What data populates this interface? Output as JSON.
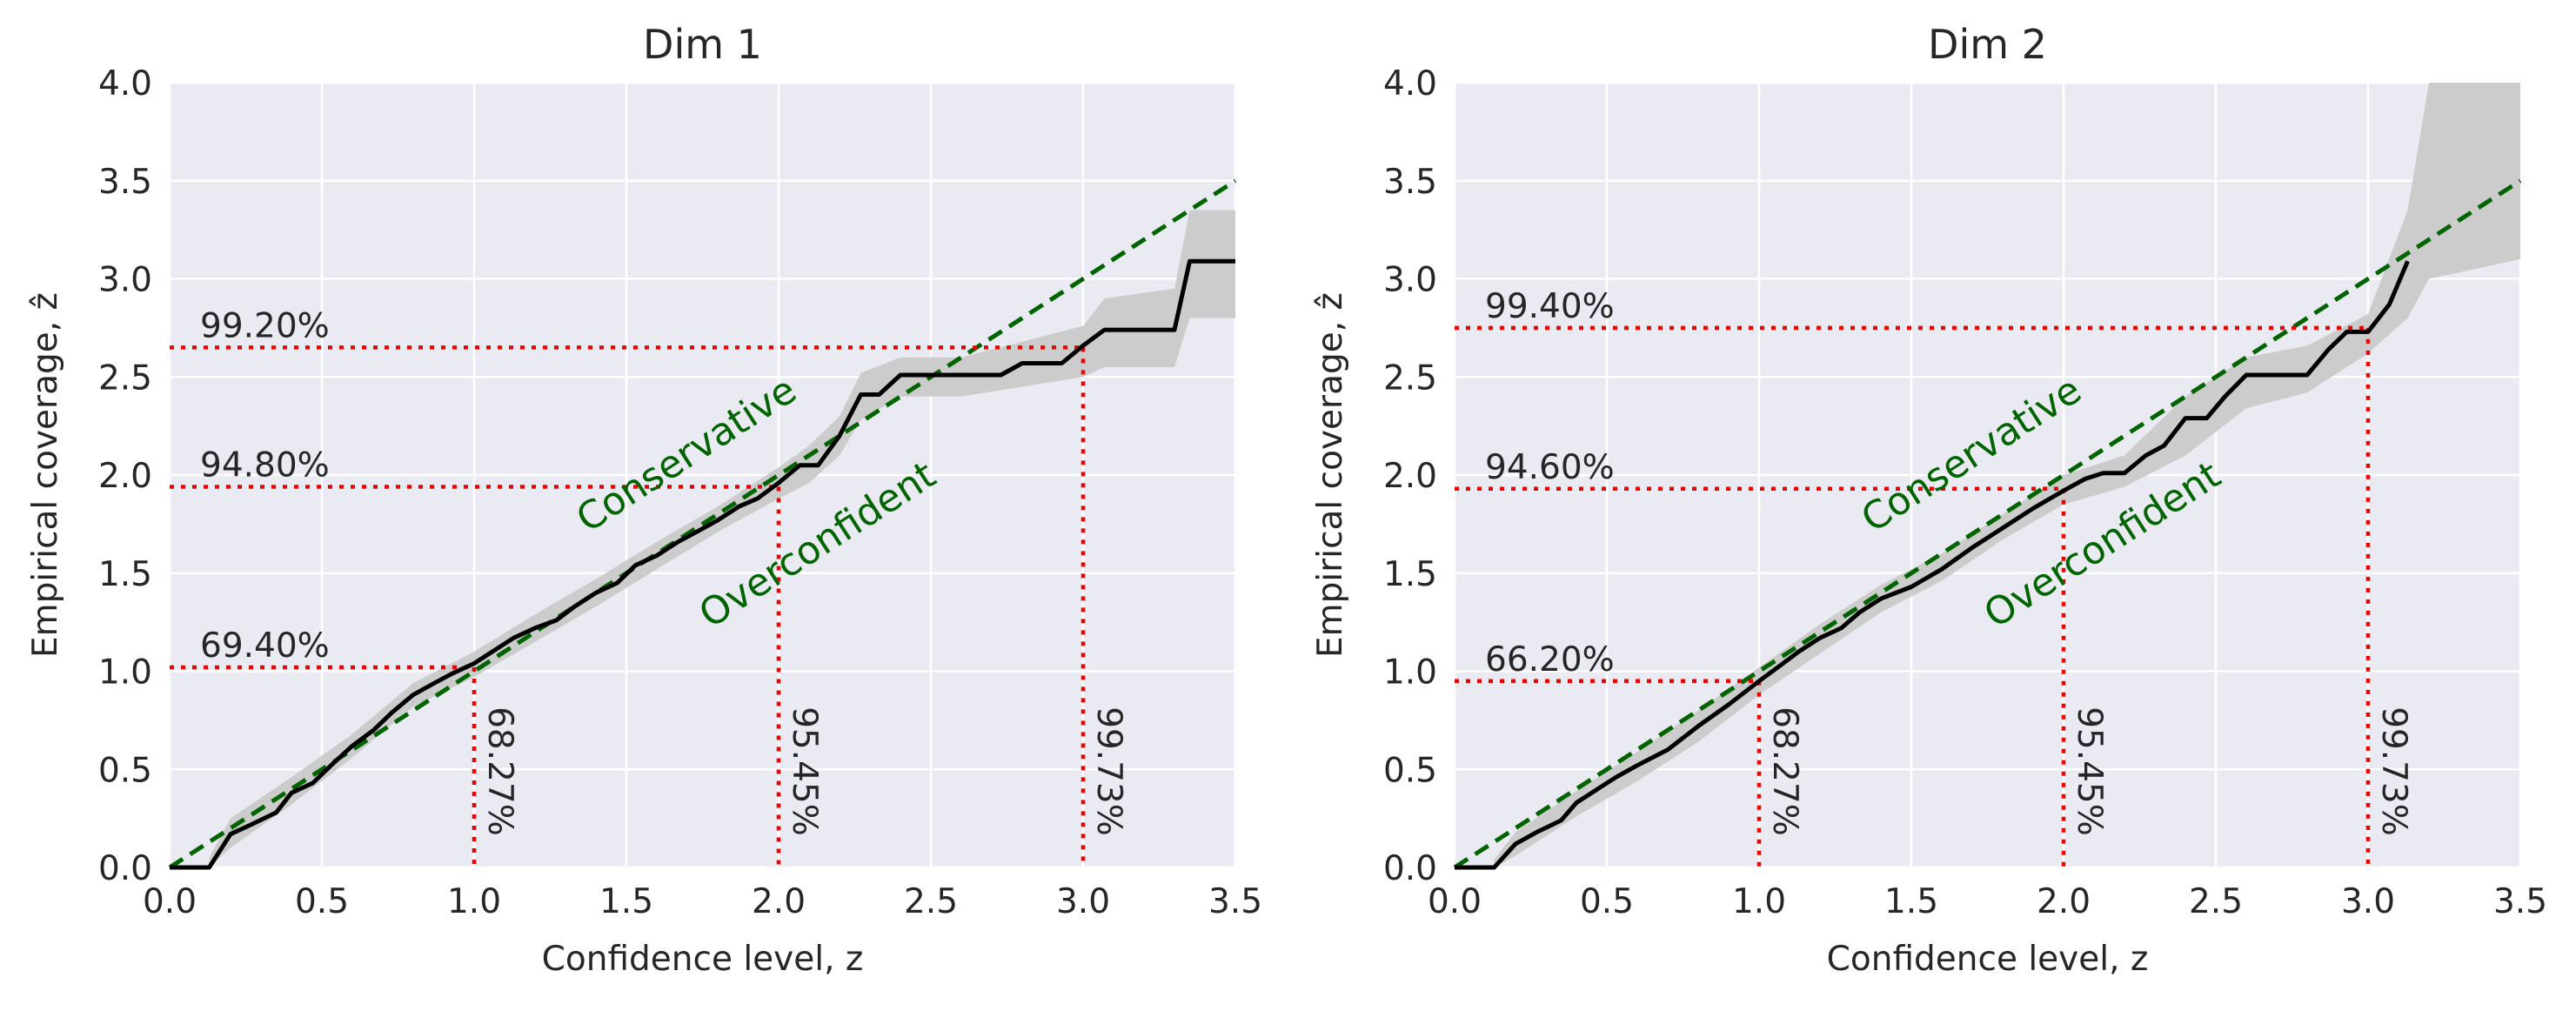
{
  "chart_data": [
    {
      "type": "line",
      "title": "Dim 1",
      "xlabel": "Confidence level, z",
      "ylabel": "Empirical coverage, ẑ",
      "xlim": [
        0,
        3.5
      ],
      "ylim": [
        0,
        4.0
      ],
      "xticks": [
        "0.0",
        "0.5",
        "1.0",
        "1.5",
        "2.0",
        "2.5",
        "3.0",
        "3.5"
      ],
      "yticks": [
        "0.0",
        "0.5",
        "1.0",
        "1.5",
        "2.0",
        "2.5",
        "3.0",
        "3.5",
        "4.0"
      ],
      "grid": true,
      "identity_line": {
        "color": "#006400",
        "from": [
          0,
          0
        ],
        "to": [
          3.5,
          3.5
        ]
      },
      "region_labels": [
        "Conservative",
        "Overconfident"
      ],
      "series": [
        {
          "name": "empirical coverage",
          "color": "#000000",
          "x": [
            0.0,
            0.13,
            0.2,
            0.27,
            0.35,
            0.4,
            0.47,
            0.53,
            0.6,
            0.67,
            0.73,
            0.8,
            0.87,
            0.93,
            1.0,
            1.07,
            1.13,
            1.2,
            1.27,
            1.33,
            1.4,
            1.47,
            1.53,
            1.6,
            1.67,
            1.73,
            1.8,
            1.87,
            1.93,
            2.0,
            2.07,
            2.13,
            2.2,
            2.27,
            2.33,
            2.4,
            2.47,
            2.53,
            2.6,
            2.67,
            2.73,
            2.8,
            2.87,
            2.93,
            3.0,
            3.07,
            3.13,
            3.2,
            3.3,
            3.35,
            3.5
          ],
          "y": [
            0.0,
            0.0,
            0.17,
            0.22,
            0.28,
            0.38,
            0.43,
            0.52,
            0.62,
            0.7,
            0.79,
            0.88,
            0.94,
            0.99,
            1.04,
            1.11,
            1.17,
            1.22,
            1.26,
            1.33,
            1.4,
            1.45,
            1.54,
            1.59,
            1.66,
            1.71,
            1.77,
            1.84,
            1.88,
            1.96,
            2.05,
            2.05,
            2.2,
            2.41,
            2.41,
            2.51,
            2.51,
            2.51,
            2.51,
            2.51,
            2.51,
            2.57,
            2.57,
            2.57,
            2.66,
            2.74,
            2.74,
            2.74,
            2.74,
            3.09,
            3.09
          ]
        }
      ],
      "band": {
        "color": "#cccccc",
        "x": [
          0.13,
          0.2,
          0.4,
          0.6,
          0.8,
          1.0,
          1.2,
          1.4,
          1.6,
          1.8,
          2.0,
          2.1,
          2.2,
          2.27,
          2.4,
          2.6,
          2.8,
          3.0,
          3.07,
          3.3,
          3.35,
          3.5
        ],
        "lower": [
          0.0,
          0.1,
          0.32,
          0.56,
          0.82,
          0.97,
          1.15,
          1.33,
          1.52,
          1.71,
          1.88,
          1.96,
          2.1,
          2.28,
          2.4,
          2.4,
          2.45,
          2.5,
          2.55,
          2.55,
          2.8,
          2.8
        ],
        "upper": [
          0.05,
          0.25,
          0.46,
          0.68,
          0.94,
          1.1,
          1.29,
          1.47,
          1.66,
          1.84,
          2.04,
          2.15,
          2.3,
          2.52,
          2.6,
          2.6,
          2.68,
          2.76,
          2.9,
          2.95,
          3.35,
          3.35
        ]
      },
      "reference_lines": [
        {
          "z": 1.0,
          "coverage": 1.02,
          "label_v": "68.27%",
          "label_h": "69.40%"
        },
        {
          "z": 2.0,
          "coverage": 1.94,
          "label_v": "95.45%",
          "label_h": "94.80%"
        },
        {
          "z": 3.0,
          "coverage": 2.65,
          "label_v": "99.73%",
          "label_h": "99.20%"
        }
      ]
    },
    {
      "type": "line",
      "title": "Dim 2",
      "xlabel": "Confidence level, z",
      "ylabel": "Empirical coverage, ẑ",
      "xlim": [
        0,
        3.5
      ],
      "ylim": [
        0,
        4.0
      ],
      "xticks": [
        "0.0",
        "0.5",
        "1.0",
        "1.5",
        "2.0",
        "2.5",
        "3.0",
        "3.5"
      ],
      "yticks": [
        "0.0",
        "0.5",
        "1.0",
        "1.5",
        "2.0",
        "2.5",
        "3.0",
        "3.5",
        "4.0"
      ],
      "grid": true,
      "identity_line": {
        "color": "#006400",
        "from": [
          0,
          0
        ],
        "to": [
          3.5,
          3.5
        ]
      },
      "region_labels": [
        "Conservative",
        "Overconfident"
      ],
      "series": [
        {
          "name": "empirical coverage",
          "color": "#000000",
          "x": [
            0.0,
            0.13,
            0.2,
            0.27,
            0.35,
            0.4,
            0.47,
            0.53,
            0.6,
            0.7,
            0.8,
            0.9,
            1.0,
            1.07,
            1.13,
            1.2,
            1.27,
            1.33,
            1.4,
            1.5,
            1.6,
            1.7,
            1.8,
            1.9,
            2.0,
            2.07,
            2.13,
            2.2,
            2.27,
            2.33,
            2.4,
            2.47,
            2.53,
            2.6,
            2.67,
            2.73,
            2.8,
            2.87,
            2.93,
            3.0,
            3.07,
            3.13
          ],
          "y": [
            0.0,
            0.0,
            0.12,
            0.18,
            0.24,
            0.33,
            0.4,
            0.46,
            0.52,
            0.6,
            0.72,
            0.83,
            0.95,
            1.03,
            1.1,
            1.17,
            1.22,
            1.3,
            1.37,
            1.43,
            1.52,
            1.63,
            1.73,
            1.83,
            1.92,
            1.98,
            2.01,
            2.01,
            2.1,
            2.15,
            2.29,
            2.29,
            2.4,
            2.51,
            2.51,
            2.51,
            2.51,
            2.64,
            2.73,
            2.73,
            2.87,
            3.09
          ]
        }
      ],
      "band": {
        "color": "#cccccc",
        "x": [
          0.13,
          0.2,
          0.4,
          0.6,
          0.8,
          1.0,
          1.2,
          1.4,
          1.6,
          1.8,
          2.0,
          2.2,
          2.4,
          2.6,
          2.8,
          3.0,
          3.13,
          3.2,
          3.5
        ],
        "lower": [
          0.0,
          0.06,
          0.26,
          0.44,
          0.64,
          0.88,
          1.09,
          1.3,
          1.46,
          1.67,
          1.85,
          1.94,
          2.1,
          2.34,
          2.42,
          2.62,
          2.8,
          3.0,
          3.1
        ],
        "upper": [
          0.04,
          0.18,
          0.39,
          0.59,
          0.8,
          1.02,
          1.24,
          1.44,
          1.6,
          1.8,
          2.0,
          2.1,
          2.4,
          2.6,
          2.66,
          2.82,
          3.35,
          4.0,
          4.0
        ]
      },
      "reference_lines": [
        {
          "z": 1.0,
          "coverage": 0.95,
          "label_v": "68.27%",
          "label_h": "66.20%"
        },
        {
          "z": 2.0,
          "coverage": 1.93,
          "label_v": "95.45%",
          "label_h": "94.60%"
        },
        {
          "z": 3.0,
          "coverage": 2.75,
          "label_v": "99.73%",
          "label_h": "99.40%"
        }
      ]
    }
  ]
}
